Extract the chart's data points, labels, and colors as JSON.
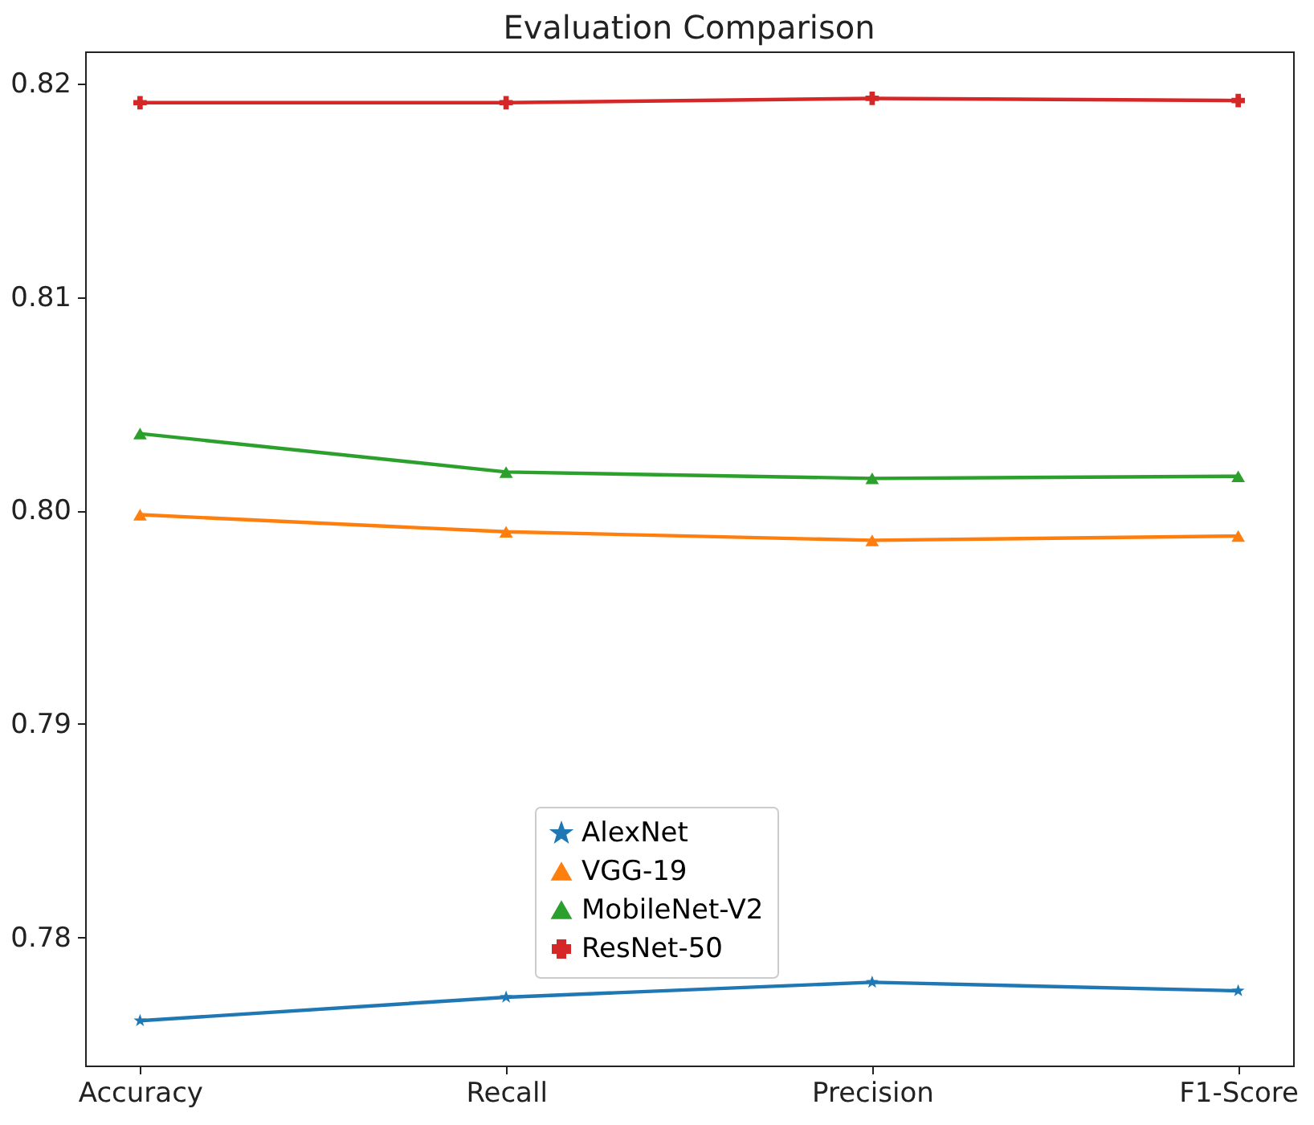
{
  "chart_data": {
    "type": "line",
    "title": "Evaluation Comparison",
    "categories": [
      "Accuracy",
      "Recall",
      "Precision",
      "F1-Score"
    ],
    "series": [
      {
        "name": "AlexNet",
        "color": "#1f77b4",
        "marker": "star",
        "values": [
          0.7761,
          0.7772,
          0.7779,
          0.7775
        ]
      },
      {
        "name": "VGG-19",
        "color": "#ff7f0e",
        "marker": "triangle",
        "values": [
          0.7998,
          0.799,
          0.7986,
          0.7988
        ]
      },
      {
        "name": "MobileNet-V2",
        "color": "#2ca02c",
        "marker": "triangle",
        "values": [
          0.8036,
          0.8018,
          0.8015,
          0.8016
        ]
      },
      {
        "name": "ResNet-50",
        "color": "#d62728",
        "marker": "cross",
        "values": [
          0.8191,
          0.8191,
          0.8193,
          0.8192
        ]
      }
    ],
    "ylim": [
      0.774,
      0.8215
    ],
    "yticks": [
      0.78,
      0.79,
      {
        "value": 0.8,
        "label": "0.80"
      },
      0.81,
      0.82
    ],
    "legend": "bottom",
    "grid": false,
    "line_style": "solid"
  }
}
